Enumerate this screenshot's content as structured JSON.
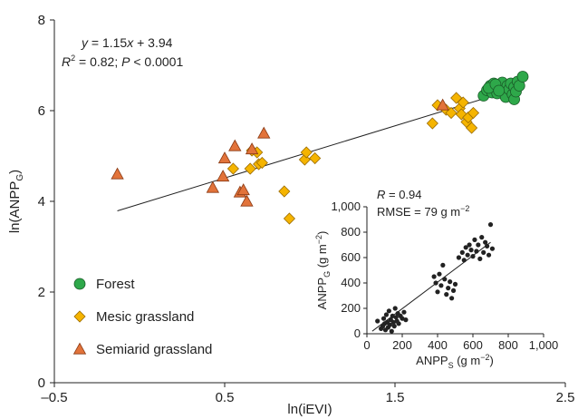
{
  "chart_data": [
    {
      "type": "scatter",
      "xlabel": "ln(iEVI)",
      "ylabel": "ln(ANPP",
      "ylabel_sub": "G",
      "ylabel_close": ")",
      "xlim": [
        -0.5,
        2.5
      ],
      "ylim": [
        0,
        8
      ],
      "xticks": [
        -0.5,
        0.5,
        1.5,
        2.5
      ],
      "xtick_labels": [
        "–0.5",
        "0.5",
        "1.5",
        "2.5"
      ],
      "yticks": [
        0,
        2,
        4,
        6,
        8
      ],
      "ytick_labels": [
        "0",
        "2",
        "4",
        "6",
        "8"
      ],
      "grid": false,
      "legend_position": "bottom-left",
      "annotations": {
        "equation": "y = 1.15x + 3.94",
        "r2_prefix": "R",
        "r2_sup": "2",
        "r2_rest": " = 0.82; ",
        "p_italic": "P",
        "p_rest": " < 0.0001"
      },
      "fit_line": {
        "slope": 1.15,
        "intercept": 3.94,
        "x_range": [
          -0.13,
          2.22
        ]
      },
      "series": [
        {
          "name": "Forest",
          "marker": "circle",
          "color": "#2ea84a",
          "stroke": "#1a5a28",
          "points": [
            [
              2.02,
              6.33
            ],
            [
              2.04,
              6.45
            ],
            [
              2.06,
              6.55
            ],
            [
              2.07,
              6.4
            ],
            [
              2.08,
              6.6
            ],
            [
              2.1,
              6.38
            ],
            [
              2.12,
              6.5
            ],
            [
              2.13,
              6.62
            ],
            [
              2.14,
              6.42
            ],
            [
              2.15,
              6.3
            ],
            [
              2.16,
              6.55
            ],
            [
              2.17,
              6.47
            ],
            [
              2.18,
              6.6
            ],
            [
              2.19,
              6.36
            ],
            [
              2.2,
              6.52
            ],
            [
              2.2,
              6.25
            ],
            [
              2.21,
              6.42
            ],
            [
              2.22,
              6.64
            ],
            [
              2.23,
              6.55
            ],
            [
              2.25,
              6.75
            ],
            [
              2.05,
              6.5
            ],
            [
              2.09,
              6.58
            ],
            [
              2.11,
              6.44
            ]
          ]
        },
        {
          "name": "Mesic grassland",
          "marker": "diamond",
          "color": "#f5b400",
          "stroke": "#9a6b00",
          "points": [
            [
              0.55,
              4.72
            ],
            [
              0.65,
              4.72
            ],
            [
              0.66,
              5.12
            ],
            [
              0.69,
              5.08
            ],
            [
              0.7,
              4.82
            ],
            [
              0.72,
              4.85
            ],
            [
              0.85,
              4.22
            ],
            [
              0.88,
              3.62
            ],
            [
              0.97,
              4.92
            ],
            [
              0.98,
              5.08
            ],
            [
              1.03,
              4.95
            ],
            [
              1.72,
              5.72
            ],
            [
              1.75,
              6.12
            ],
            [
              1.8,
              6.02
            ],
            [
              1.83,
              5.95
            ],
            [
              1.86,
              6.28
            ],
            [
              1.88,
              6.05
            ],
            [
              1.89,
              5.92
            ],
            [
              1.9,
              6.18
            ],
            [
              1.92,
              5.75
            ],
            [
              1.93,
              5.85
            ],
            [
              1.95,
              5.62
            ],
            [
              1.96,
              5.95
            ]
          ]
        },
        {
          "name": "Semiarid grassland",
          "marker": "triangle",
          "color": "#e2733a",
          "stroke": "#8a3a14",
          "points": [
            [
              -0.13,
              4.6
            ],
            [
              0.43,
              4.3
            ],
            [
              0.49,
              4.55
            ],
            [
              0.5,
              4.95
            ],
            [
              0.56,
              5.22
            ],
            [
              0.59,
              4.2
            ],
            [
              0.61,
              4.25
            ],
            [
              0.63,
              4.0
            ],
            [
              0.66,
              5.15
            ],
            [
              0.73,
              5.5
            ],
            [
              1.78,
              6.12
            ]
          ]
        }
      ]
    },
    {
      "type": "scatter",
      "xlabel": "ANPP",
      "xlabel_sub": "S",
      "xlabel_unit": " (g m",
      "xlabel_unit_sup": "−2",
      "xlabel_close": ")",
      "ylabel": "ANPP",
      "ylabel_sub": "G",
      "ylabel_unit": " (g m",
      "ylabel_unit_sup": "−2",
      "ylabel_close": ")",
      "xlim": [
        0,
        1000
      ],
      "ylim": [
        0,
        1000
      ],
      "xticks": [
        0,
        200,
        400,
        600,
        800,
        1000
      ],
      "xtick_labels": [
        "0",
        "200",
        "400",
        "600",
        "800",
        "1,000"
      ],
      "yticks": [
        0,
        200,
        400,
        600,
        800,
        1000
      ],
      "ytick_labels": [
        "0",
        "200",
        "400",
        "600",
        "800",
        "1,000"
      ],
      "annotations": {
        "r_prefix": "R",
        "r_rest": " = 0.94",
        "rmse": "RMSE = 79 g m",
        "rmse_sup": "−2"
      },
      "fit_line": {
        "x_range": [
          30,
          700
        ],
        "y_range": [
          20,
          720
        ]
      },
      "series": [
        {
          "marker": "dot",
          "color": "#222222",
          "points": [
            [
              60,
              100
            ],
            [
              80,
              40
            ],
            [
              90,
              60
            ],
            [
              95,
              120
            ],
            [
              100,
              80
            ],
            [
              105,
              30
            ],
            [
              110,
              150
            ],
            [
              115,
              90
            ],
            [
              120,
              50
            ],
            [
              125,
              180
            ],
            [
              130,
              70
            ],
            [
              135,
              110
            ],
            [
              140,
              20
            ],
            [
              145,
              140
            ],
            [
              150,
              90
            ],
            [
              155,
              60
            ],
            [
              160,
              200
            ],
            [
              165,
              130
            ],
            [
              170,
              100
            ],
            [
              175,
              160
            ],
            [
              180,
              80
            ],
            [
              190,
              140
            ],
            [
              200,
              120
            ],
            [
              210,
              170
            ],
            [
              220,
              110
            ],
            [
              380,
              450
            ],
            [
              390,
              400
            ],
            [
              400,
              330
            ],
            [
              410,
              470
            ],
            [
              420,
              380
            ],
            [
              430,
              540
            ],
            [
              440,
              430
            ],
            [
              450,
              310
            ],
            [
              460,
              360
            ],
            [
              470,
              410
            ],
            [
              480,
              280
            ],
            [
              490,
              340
            ],
            [
              500,
              390
            ],
            [
              520,
              600
            ],
            [
              540,
              640
            ],
            [
              550,
              580
            ],
            [
              560,
              680
            ],
            [
              570,
              620
            ],
            [
              580,
              700
            ],
            [
              590,
              660
            ],
            [
              600,
              610
            ],
            [
              610,
              740
            ],
            [
              620,
              650
            ],
            [
              630,
              700
            ],
            [
              640,
              590
            ],
            [
              650,
              760
            ],
            [
              660,
              640
            ],
            [
              670,
              720
            ],
            [
              680,
              690
            ],
            [
              690,
              620
            ],
            [
              700,
              860
            ],
            [
              710,
              670
            ]
          ]
        }
      ]
    }
  ]
}
